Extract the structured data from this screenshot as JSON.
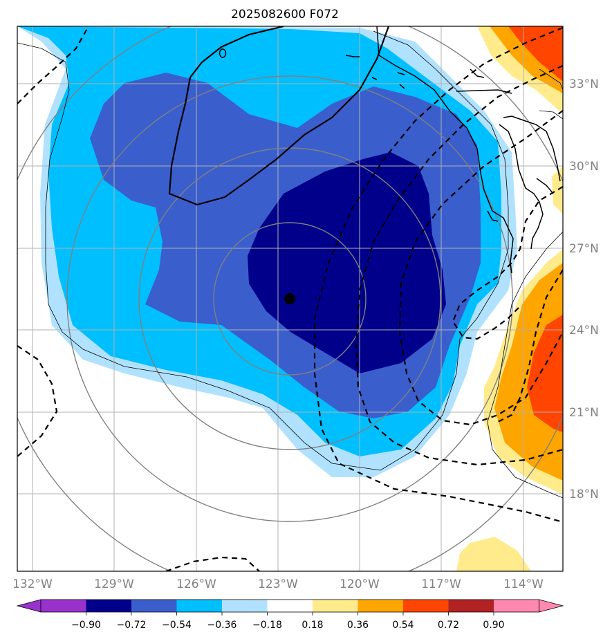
{
  "title": "2025082600 F072",
  "lat_labels": [
    "33°N",
    "30°N",
    "27°N",
    "24°N",
    "21°N",
    "18°N"
  ],
  "lon_labels": [
    "132°W",
    "129°W",
    "126°W",
    "123°W",
    "120°W",
    "117°W",
    "114°W"
  ],
  "colorbar": {
    "ticks": [
      "−0.90",
      "−0.72",
      "−0.54",
      "−0.36",
      "−0.18",
      "0.18",
      "0.36",
      "0.54",
      "0.72",
      "0.90"
    ],
    "colors": [
      "#9932cc",
      "#00008b",
      "#3a5fcd",
      "#00bfff",
      "#b0e2ff",
      "#ffffff",
      "#ffeb8c",
      "#ffa500",
      "#ff4500",
      "#b22222",
      "#ff88b0"
    ]
  },
  "storm_center": {
    "lon": -122.6,
    "lat": 25.1
  }
}
